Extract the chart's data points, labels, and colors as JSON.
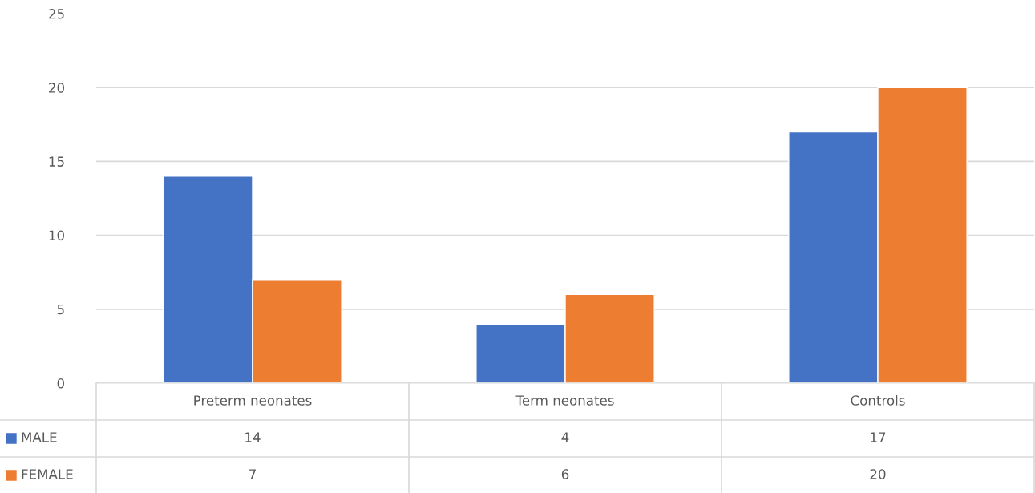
{
  "chart_data": {
    "type": "bar",
    "categories": [
      "Preterm neonates",
      "Term neonates",
      "Controls"
    ],
    "series": [
      {
        "name": "MALE",
        "color": "#4472c4",
        "values": [
          14,
          4,
          17
        ]
      },
      {
        "name": "FEMALE",
        "color": "#ed7d31",
        "values": [
          7,
          6,
          20
        ]
      }
    ],
    "ylim": [
      0,
      25
    ],
    "yticks": [
      0,
      5,
      10,
      15,
      20,
      25
    ],
    "grid": "y",
    "legend": "bottom",
    "data_labels": true
  }
}
